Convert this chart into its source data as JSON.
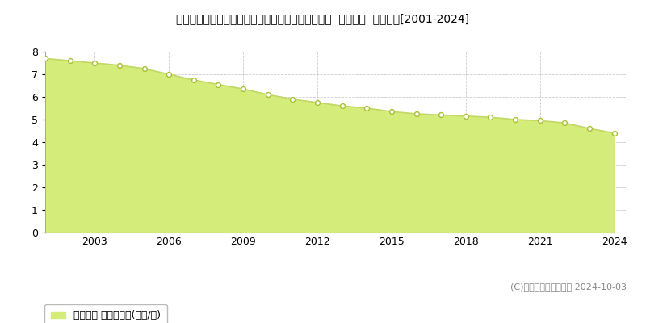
{
  "title": "佐賀県佐賀市巨勢町大字修理田字二本谷２７番１外  基準地価  地価推移[2001-2024]",
  "years": [
    2001,
    2002,
    2003,
    2004,
    2005,
    2006,
    2007,
    2008,
    2009,
    2010,
    2011,
    2012,
    2013,
    2014,
    2015,
    2016,
    2017,
    2018,
    2019,
    2020,
    2021,
    2022,
    2023,
    2024
  ],
  "values": [
    7.7,
    7.6,
    7.5,
    7.4,
    7.25,
    7.0,
    6.75,
    6.55,
    6.35,
    6.1,
    5.9,
    5.75,
    5.6,
    5.5,
    5.35,
    5.25,
    5.2,
    5.15,
    5.1,
    5.0,
    4.95,
    4.85,
    4.6,
    4.4
  ],
  "fill_color": "#d4ed7a",
  "line_color": "#c0d864",
  "marker_facecolor": "#ffffff",
  "marker_edgecolor": "#a8c030",
  "bg_color": "#ffffff",
  "grid_color": "#cccccc",
  "ylim": [
    0,
    8
  ],
  "yticks": [
    0,
    1,
    2,
    3,
    4,
    5,
    6,
    7,
    8
  ],
  "xticks": [
    2003,
    2006,
    2009,
    2012,
    2015,
    2018,
    2021,
    2024
  ],
  "legend_label": "基準地価 平均坪単価(万円/坪)",
  "copyright_text": "(C)土地価格ドットコム 2024-10-03",
  "title_fontsize": 11.5,
  "axis_fontsize": 9,
  "legend_fontsize": 9,
  "copyright_fontsize": 8
}
